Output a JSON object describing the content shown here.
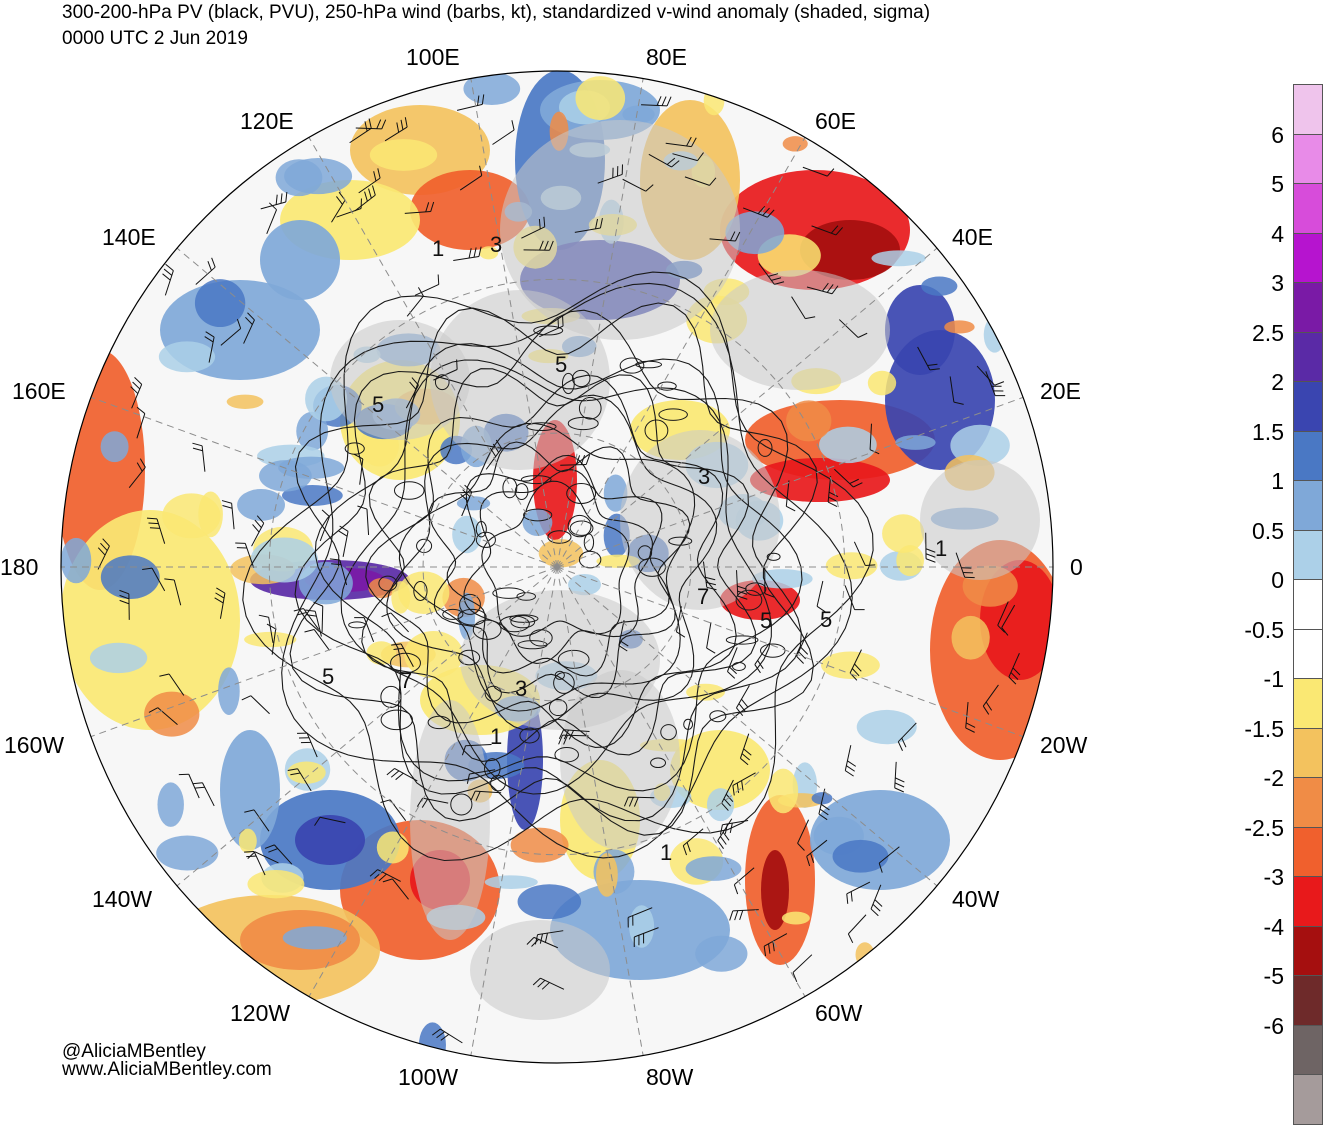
{
  "title": {
    "line1": "300-200-hPa PV (black, PVU), 250-hPa wind (barbs, kt), standardized v-wind anomaly (shaded, sigma)",
    "line2": "0000 UTC 2 Jun 2019"
  },
  "longitude_labels": [
    {
      "id": "100E",
      "text": "100E"
    },
    {
      "id": "80E",
      "text": "80E"
    },
    {
      "id": "120E",
      "text": "120E"
    },
    {
      "id": "60E",
      "text": "60E"
    },
    {
      "id": "140E",
      "text": "140E"
    },
    {
      "id": "40E",
      "text": "40E"
    },
    {
      "id": "160E",
      "text": "160E"
    },
    {
      "id": "20E",
      "text": "20E"
    },
    {
      "id": "180",
      "text": "180"
    },
    {
      "id": "0",
      "text": "0"
    },
    {
      "id": "160W",
      "text": "160W"
    },
    {
      "id": "20W",
      "text": "20W"
    },
    {
      "id": "140W",
      "text": "140W"
    },
    {
      "id": "40W",
      "text": "40W"
    },
    {
      "id": "120W",
      "text": "120W"
    },
    {
      "id": "60W",
      "text": "60W"
    },
    {
      "id": "100W",
      "text": "100W"
    },
    {
      "id": "80W",
      "text": "80W"
    }
  ],
  "pv_contour_labels": [
    "3",
    "5",
    "5",
    "3",
    "1",
    "5",
    "7",
    "5",
    "1",
    "5",
    "7",
    "3",
    "1",
    "1"
  ],
  "colorbar": {
    "labels": [
      "6",
      "5",
      "4",
      "3",
      "2.5",
      "2",
      "1.5",
      "1",
      "0.5",
      "0",
      "-0.5",
      "-1",
      "-1.5",
      "-2",
      "-2.5",
      "-3",
      "-4",
      "-5",
      "-6"
    ],
    "colors": [
      "#a59b9b",
      "#6e6464",
      "#6e2a2a",
      "#a50f0f",
      "#e8191b",
      "#f0602d",
      "#f08c46",
      "#f3c25e",
      "#fae873",
      "#ffffff",
      "#ffffff",
      "#acd0e8",
      "#7fa8d8",
      "#4a78c4",
      "#3a45b0",
      "#5a2aa6",
      "#7a1aa6",
      "#b614cf",
      "#d74cda",
      "#e88be8",
      "#efc4ec"
    ]
  },
  "credits": {
    "handle": "@AliciaMBentley",
    "site": "www.AliciaMBentley.com"
  },
  "style_colors": {
    "land": "#c8c8c8",
    "pv_contour": "#1a1a1a",
    "graticule": "#8c8c8c"
  }
}
